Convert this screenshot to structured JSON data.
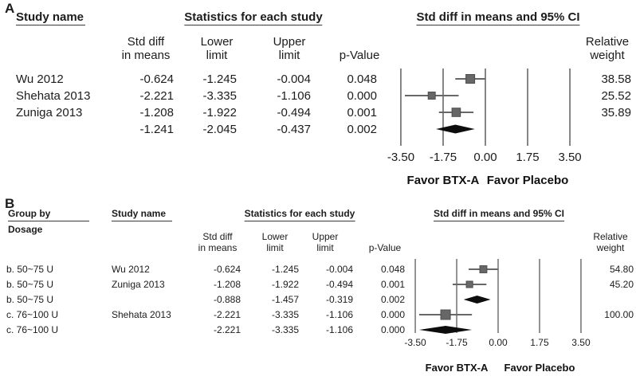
{
  "figure": {
    "panels": [
      {
        "panel_label": "A",
        "headers": {
          "study_name": "Study name",
          "stats_group": "Statistics for each study",
          "plot_group": "Std diff in means and 95% CI",
          "std_diff_1": "Std diff",
          "std_diff_2": "in means",
          "lower_1": "Lower",
          "lower_2": "limit",
          "upper_1": "Upper",
          "upper_2": "limit",
          "p_value": "p-Value",
          "weight_1": "Relative",
          "weight_2": "weight"
        }
      },
      {
        "panel_label": "B",
        "headers": {
          "group_by_1": "Group by",
          "group_by_2": "Dosage",
          "study_name": "Study name",
          "stats_group": "Statistics for each study",
          "plot_group": "Std diff in means and 95% CI",
          "std_diff_1": "Std diff",
          "std_diff_2": "in means",
          "lower_1": "Lower",
          "lower_2": "limit",
          "upper_1": "Upper",
          "upper_2": "limit",
          "p_value": "p-Value",
          "weight_1": "Relative",
          "weight_2": "weight"
        }
      }
    ]
  },
  "chart_data": [
    {
      "type": "forest",
      "panel": "A",
      "title": "Std diff in means and 95% CI",
      "xlim": [
        -3.5,
        3.5
      ],
      "x_ticks": [
        -3.5,
        -1.75,
        0,
        1.75,
        3.5
      ],
      "x_tick_labels": [
        "-3.50",
        "-1.75",
        "0.00",
        "1.75",
        "3.50"
      ],
      "favor_left": "Favor BTX-A",
      "favor_right": "Favor Placebo",
      "colors": {
        "marker": "#676767",
        "ci_line": "#676767",
        "summary": "#0d0d0d",
        "gridline": "#676767",
        "text": "#1c1c1c"
      },
      "rows": [
        {
          "study": "Wu 2012",
          "std_diff": -0.624,
          "lower": -1.245,
          "upper": -0.004,
          "p_value": 0.048,
          "weight": 38.58,
          "marker": "square"
        },
        {
          "study": "Shehata 2013",
          "std_diff": -2.221,
          "lower": -3.335,
          "upper": -1.106,
          "p_value": 0.0,
          "weight": 25.52,
          "marker": "square"
        },
        {
          "study": "Zuniga 2013",
          "std_diff": -1.208,
          "lower": -1.922,
          "upper": -0.494,
          "p_value": 0.001,
          "weight": 35.89,
          "marker": "square"
        },
        {
          "study": "",
          "std_diff": -1.241,
          "lower": -2.045,
          "upper": -0.437,
          "p_value": 0.002,
          "weight": null,
          "marker": "diamond"
        }
      ]
    },
    {
      "type": "forest",
      "panel": "B",
      "title": "Std diff in means and 95% CI",
      "xlim": [
        -3.5,
        3.5
      ],
      "x_ticks": [
        -3.5,
        -1.75,
        0,
        1.75,
        3.5
      ],
      "x_tick_labels": [
        "-3.50",
        "-1.75",
        "0.00",
        "1.75",
        "3.50"
      ],
      "favor_left": "Favor BTX-A",
      "favor_right": "Favor Placebo",
      "colors": {
        "marker": "#676767",
        "ci_line": "#676767",
        "summary": "#0d0d0d",
        "gridline": "#676767",
        "text": "#1c1c1c"
      },
      "rows": [
        {
          "group": "b. 50~75 U",
          "study": "Wu 2012",
          "std_diff": -0.624,
          "lower": -1.245,
          "upper": -0.004,
          "p_value": 0.048,
          "weight": 54.8,
          "marker": "square"
        },
        {
          "group": "b. 50~75 U",
          "study": "Zuniga 2013",
          "std_diff": -1.208,
          "lower": -1.922,
          "upper": -0.494,
          "p_value": 0.001,
          "weight": 45.2,
          "marker": "square"
        },
        {
          "group": "b. 50~75 U",
          "study": "",
          "std_diff": -0.888,
          "lower": -1.457,
          "upper": -0.319,
          "p_value": 0.002,
          "weight": null,
          "marker": "diamond"
        },
        {
          "group": "c. 76~100 U",
          "study": "Shehata 2013",
          "std_diff": -2.221,
          "lower": -3.335,
          "upper": -1.106,
          "p_value": 0.0,
          "weight": 100.0,
          "marker": "square"
        },
        {
          "group": "c. 76~100 U",
          "study": "",
          "std_diff": -2.221,
          "lower": -3.335,
          "upper": -1.106,
          "p_value": 0.0,
          "weight": null,
          "marker": "diamond"
        }
      ]
    }
  ]
}
